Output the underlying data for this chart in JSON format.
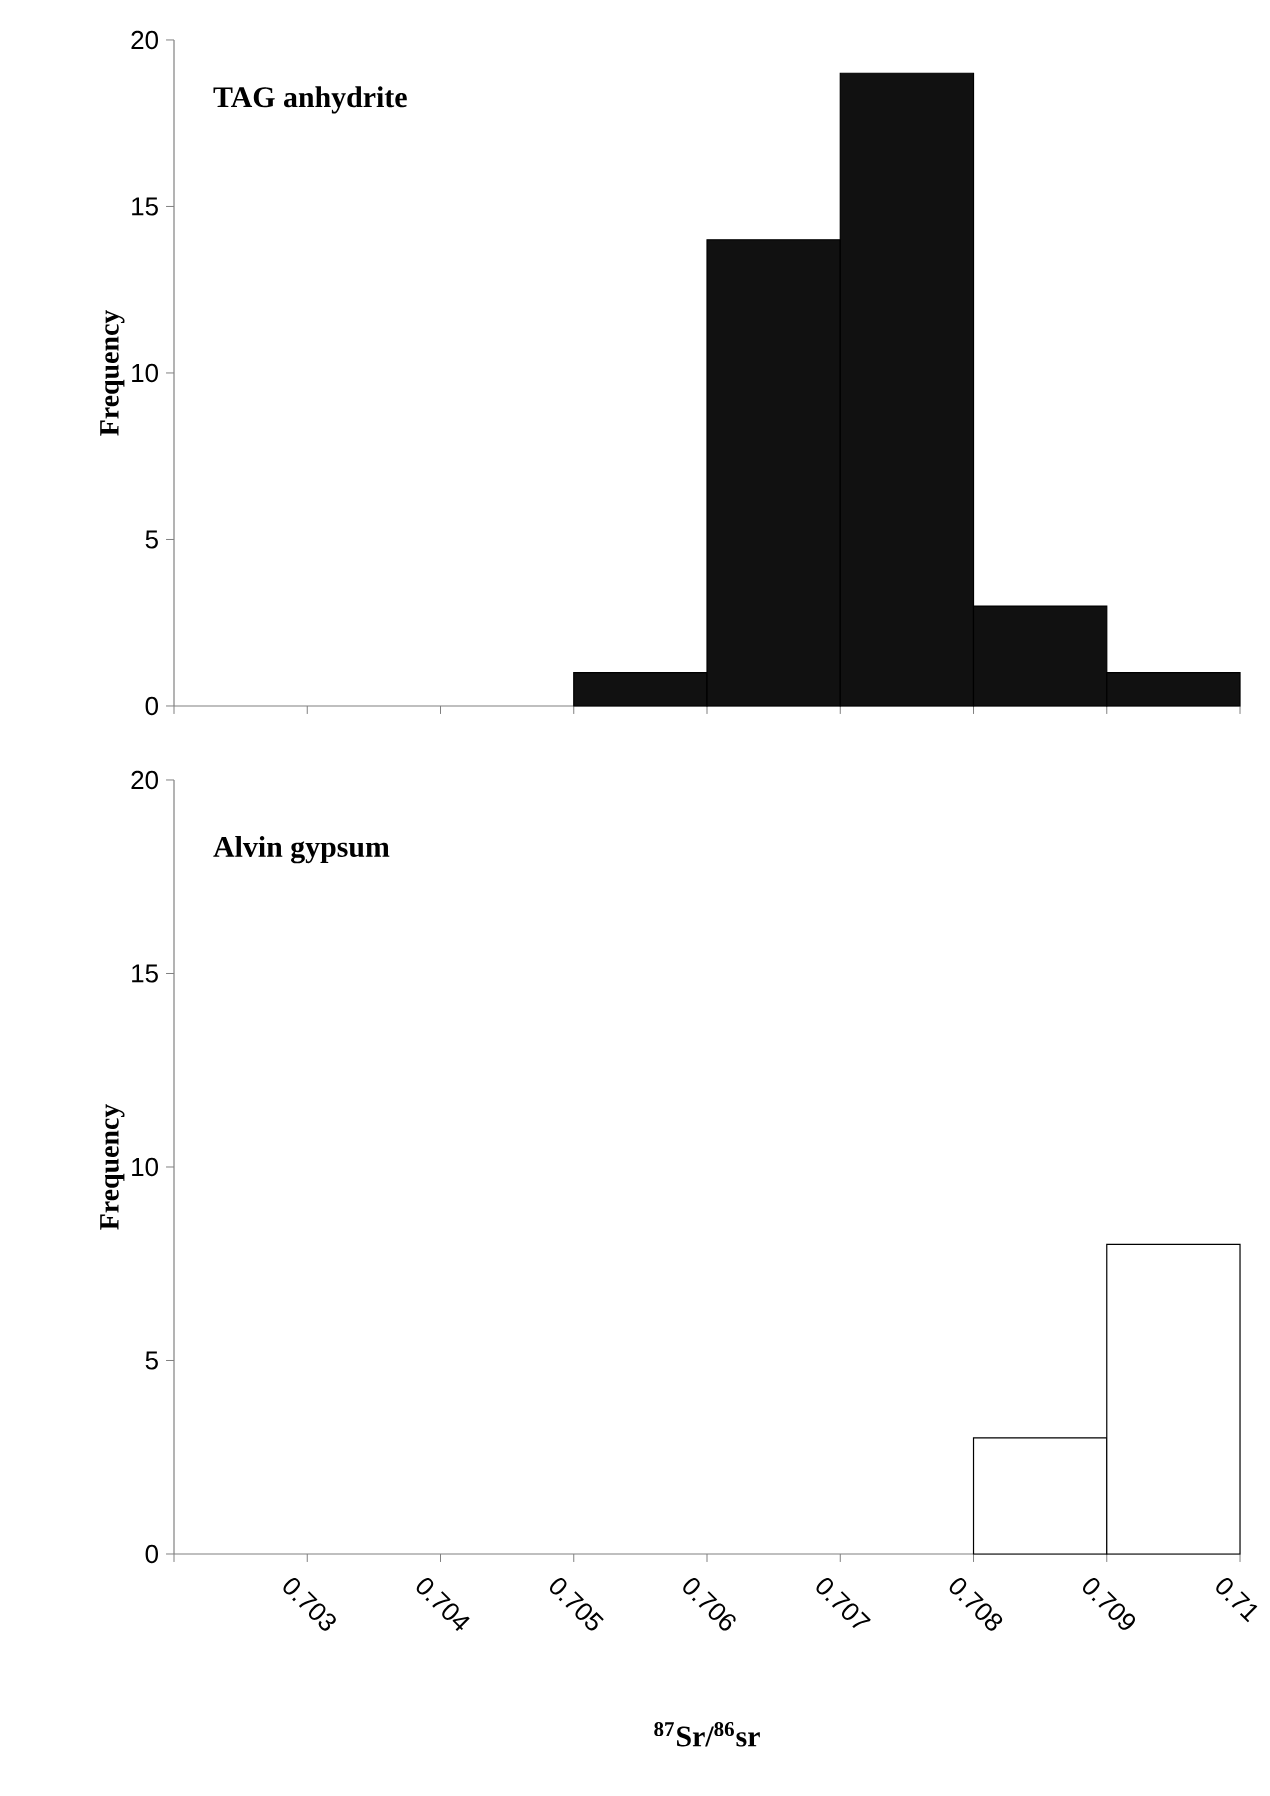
{
  "chart_data": [
    {
      "type": "histogram",
      "title": "TAG anhydrite",
      "ylabel": "Frequency",
      "bins": [
        0.705,
        0.706,
        0.707,
        0.708,
        0.709,
        0.71
      ],
      "values": [
        1,
        14,
        19,
        3,
        1
      ],
      "color": "#111111",
      "xlim": [
        0.702,
        0.71
      ],
      "xticks": [
        0.702,
        0.703,
        0.704,
        0.705,
        0.706,
        0.707,
        0.708,
        0.709,
        0.71
      ],
      "ylim": [
        0,
        20
      ],
      "yticks": [
        0,
        5,
        10,
        15,
        20
      ],
      "tick_labels": "y"
    },
    {
      "type": "histogram",
      "title": "Alvin gypsum",
      "ylabel": "Frequency",
      "xlabel": "$^{87}$Sr/$^{86}$sr",
      "bins": [
        0.708,
        0.709,
        0.71
      ],
      "values": [
        3,
        8
      ],
      "color": "#ffffff",
      "xlim": [
        0.702,
        0.71
      ],
      "xticks": [
        {
          "value": 0.702,
          "label": null
        },
        0.703,
        0.704,
        0.705,
        0.706,
        0.707,
        0.708,
        0.709,
        0.71
      ],
      "ylim": [
        0,
        20
      ],
      "yticks": [
        0,
        5,
        10,
        15,
        20
      ]
    }
  ]
}
